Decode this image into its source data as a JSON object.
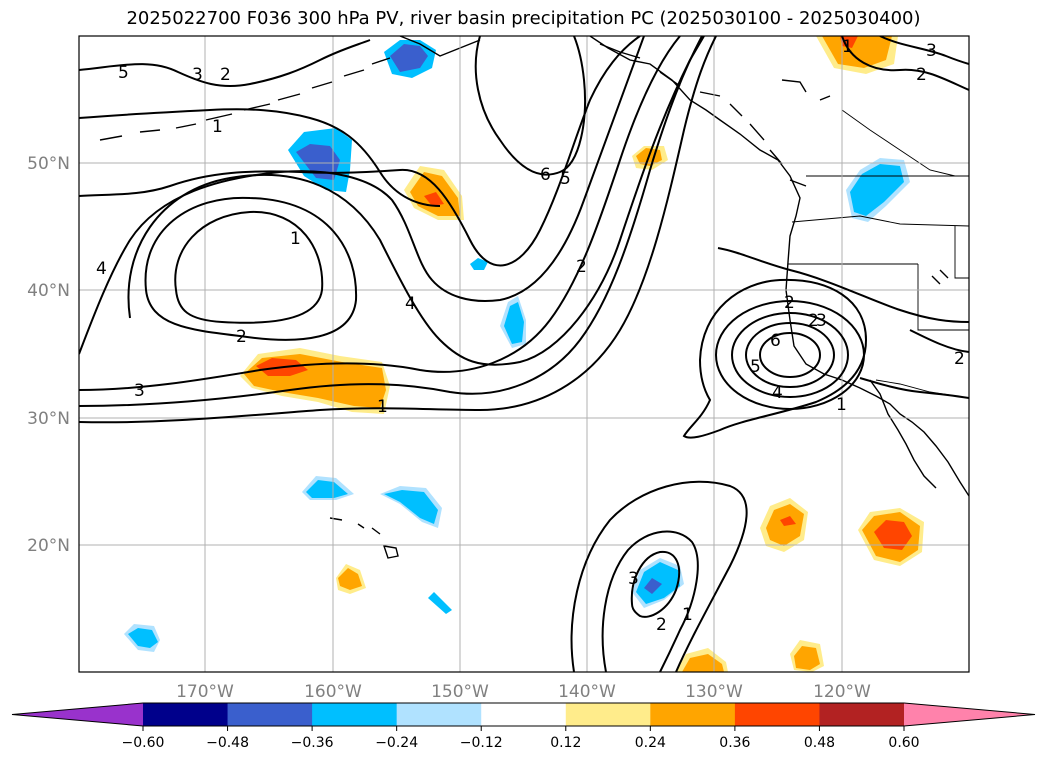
{
  "title": "2025022700 F036 300 hPa PV, river basin precipitation PC (2025030100 - 2025030400)",
  "map": {
    "lon_ticks": [
      "170°W",
      "160°W",
      "150°W",
      "140°W",
      "130°W",
      "120°W"
    ],
    "lat_ticks": [
      "50°N",
      "40°N",
      "30°N",
      "20°N"
    ],
    "contour_labels": [
      "5",
      "3",
      "2",
      "1",
      "6",
      "5",
      "1",
      "2",
      "4",
      "1",
      "4",
      "2",
      "3",
      "2",
      "2",
      "3",
      "6",
      "5",
      "4",
      "1",
      "3",
      "2",
      "1",
      "1",
      "3",
      "2",
      "2"
    ]
  },
  "colorbar": {
    "tick_labels": [
      "−0.60",
      "−0.48",
      "−0.36",
      "−0.24",
      "−0.12",
      "0.12",
      "0.24",
      "0.36",
      "0.48",
      "0.60"
    ],
    "colors": [
      "#9932cc",
      "#00008b",
      "#3a5fcd",
      "#00bfff",
      "#b0e2ff",
      "#ffffff",
      "#ffec8b",
      "#ffa500",
      "#ff4500",
      "#b22222",
      "#ff82ab"
    ]
  }
}
